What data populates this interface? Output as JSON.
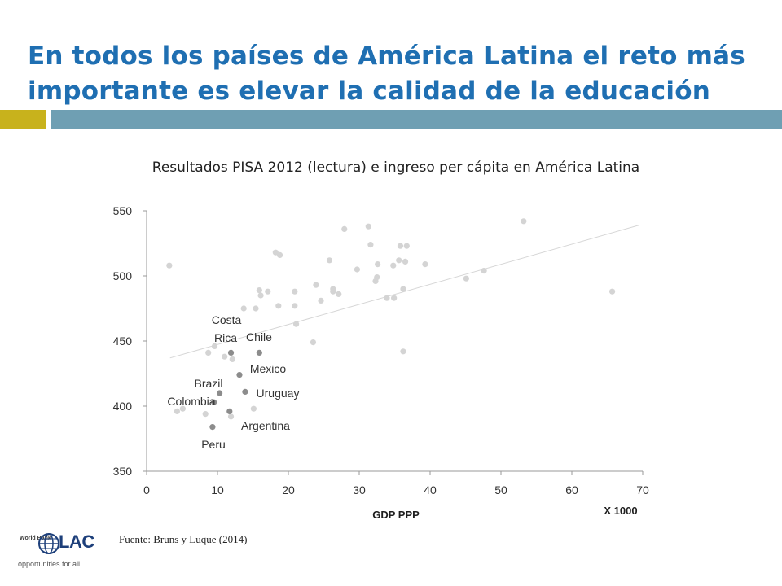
{
  "slide": {
    "title": "En todos los países de América Latina el reto más importante es elevar la calidad de la educación",
    "source": "Fuente: Bruns y Luque (2014)",
    "logo": {
      "org_text": "World Bank",
      "brand": "LAC",
      "tagline": "opportunities for all"
    },
    "colors": {
      "title": "#1f6fb2",
      "accent_bar_left": "#c8b21c",
      "accent_bar_right": "#6f9fb3"
    }
  },
  "chart_data": {
    "type": "scatter",
    "title": "Resultados PISA 2012 (lectura) e ingreso per cápita en América Latina",
    "xlabel": "GDP PPP",
    "xunit_note": "X 1000",
    "ylabel": "",
    "xlim": [
      0,
      70
    ],
    "ylim": [
      350,
      550
    ],
    "xticks": [
      0,
      10,
      20,
      30,
      40,
      50,
      60,
      70
    ],
    "yticks": [
      350,
      400,
      450,
      500,
      550
    ],
    "grid": false,
    "marker_colors": {
      "other": "#d4d4d4",
      "latin_america": "#8c8c8c"
    },
    "trendline": {
      "x": [
        3.3,
        69.5
      ],
      "y": [
        437,
        539
      ],
      "color": "#d6d6d6"
    },
    "other_points": [
      {
        "x": 3.2,
        "y": 508
      },
      {
        "x": 4.3,
        "y": 396
      },
      {
        "x": 5.1,
        "y": 398
      },
      {
        "x": 8.3,
        "y": 394
      },
      {
        "x": 8.7,
        "y": 441
      },
      {
        "x": 9.6,
        "y": 446
      },
      {
        "x": 11.0,
        "y": 438
      },
      {
        "x": 11.9,
        "y": 392
      },
      {
        "x": 12.1,
        "y": 436
      },
      {
        "x": 13.7,
        "y": 475
      },
      {
        "x": 15.1,
        "y": 398
      },
      {
        "x": 15.4,
        "y": 475
      },
      {
        "x": 15.9,
        "y": 489
      },
      {
        "x": 16.1,
        "y": 485
      },
      {
        "x": 17.1,
        "y": 488
      },
      {
        "x": 18.2,
        "y": 518
      },
      {
        "x": 18.6,
        "y": 477
      },
      {
        "x": 18.8,
        "y": 516
      },
      {
        "x": 20.9,
        "y": 488
      },
      {
        "x": 20.9,
        "y": 477
      },
      {
        "x": 21.1,
        "y": 463
      },
      {
        "x": 23.5,
        "y": 449
      },
      {
        "x": 23.9,
        "y": 493
      },
      {
        "x": 24.6,
        "y": 481
      },
      {
        "x": 25.8,
        "y": 512
      },
      {
        "x": 26.3,
        "y": 490
      },
      {
        "x": 26.3,
        "y": 488
      },
      {
        "x": 27.1,
        "y": 486
      },
      {
        "x": 27.9,
        "y": 536
      },
      {
        "x": 29.7,
        "y": 505
      },
      {
        "x": 31.3,
        "y": 538
      },
      {
        "x": 31.6,
        "y": 524
      },
      {
        "x": 32.3,
        "y": 496
      },
      {
        "x": 32.5,
        "y": 499
      },
      {
        "x": 32.6,
        "y": 509
      },
      {
        "x": 33.9,
        "y": 483
      },
      {
        "x": 34.8,
        "y": 508
      },
      {
        "x": 34.9,
        "y": 483
      },
      {
        "x": 35.6,
        "y": 512
      },
      {
        "x": 35.8,
        "y": 523
      },
      {
        "x": 36.2,
        "y": 442
      },
      {
        "x": 36.2,
        "y": 490
      },
      {
        "x": 36.5,
        "y": 511
      },
      {
        "x": 36.7,
        "y": 523
      },
      {
        "x": 39.3,
        "y": 509
      },
      {
        "x": 45.1,
        "y": 498
      },
      {
        "x": 47.6,
        "y": 504
      },
      {
        "x": 53.2,
        "y": 542
      },
      {
        "x": 65.7,
        "y": 488
      }
    ],
    "highlighted_points": [
      {
        "label": "Costa Rica",
        "x": 11.9,
        "y": 441
      },
      {
        "label": "Chile",
        "x": 15.9,
        "y": 441
      },
      {
        "label": "Mexico",
        "x": 13.1,
        "y": 424
      },
      {
        "label": "Brazil",
        "x": 10.3,
        "y": 410
      },
      {
        "label": "Uruguay",
        "x": 13.9,
        "y": 411
      },
      {
        "label": "Colombia",
        "x": 9.5,
        "y": 403
      },
      {
        "label": "Argentina",
        "x": 11.7,
        "y": 396
      },
      {
        "label": "Peru",
        "x": 9.3,
        "y": 384
      }
    ]
  }
}
